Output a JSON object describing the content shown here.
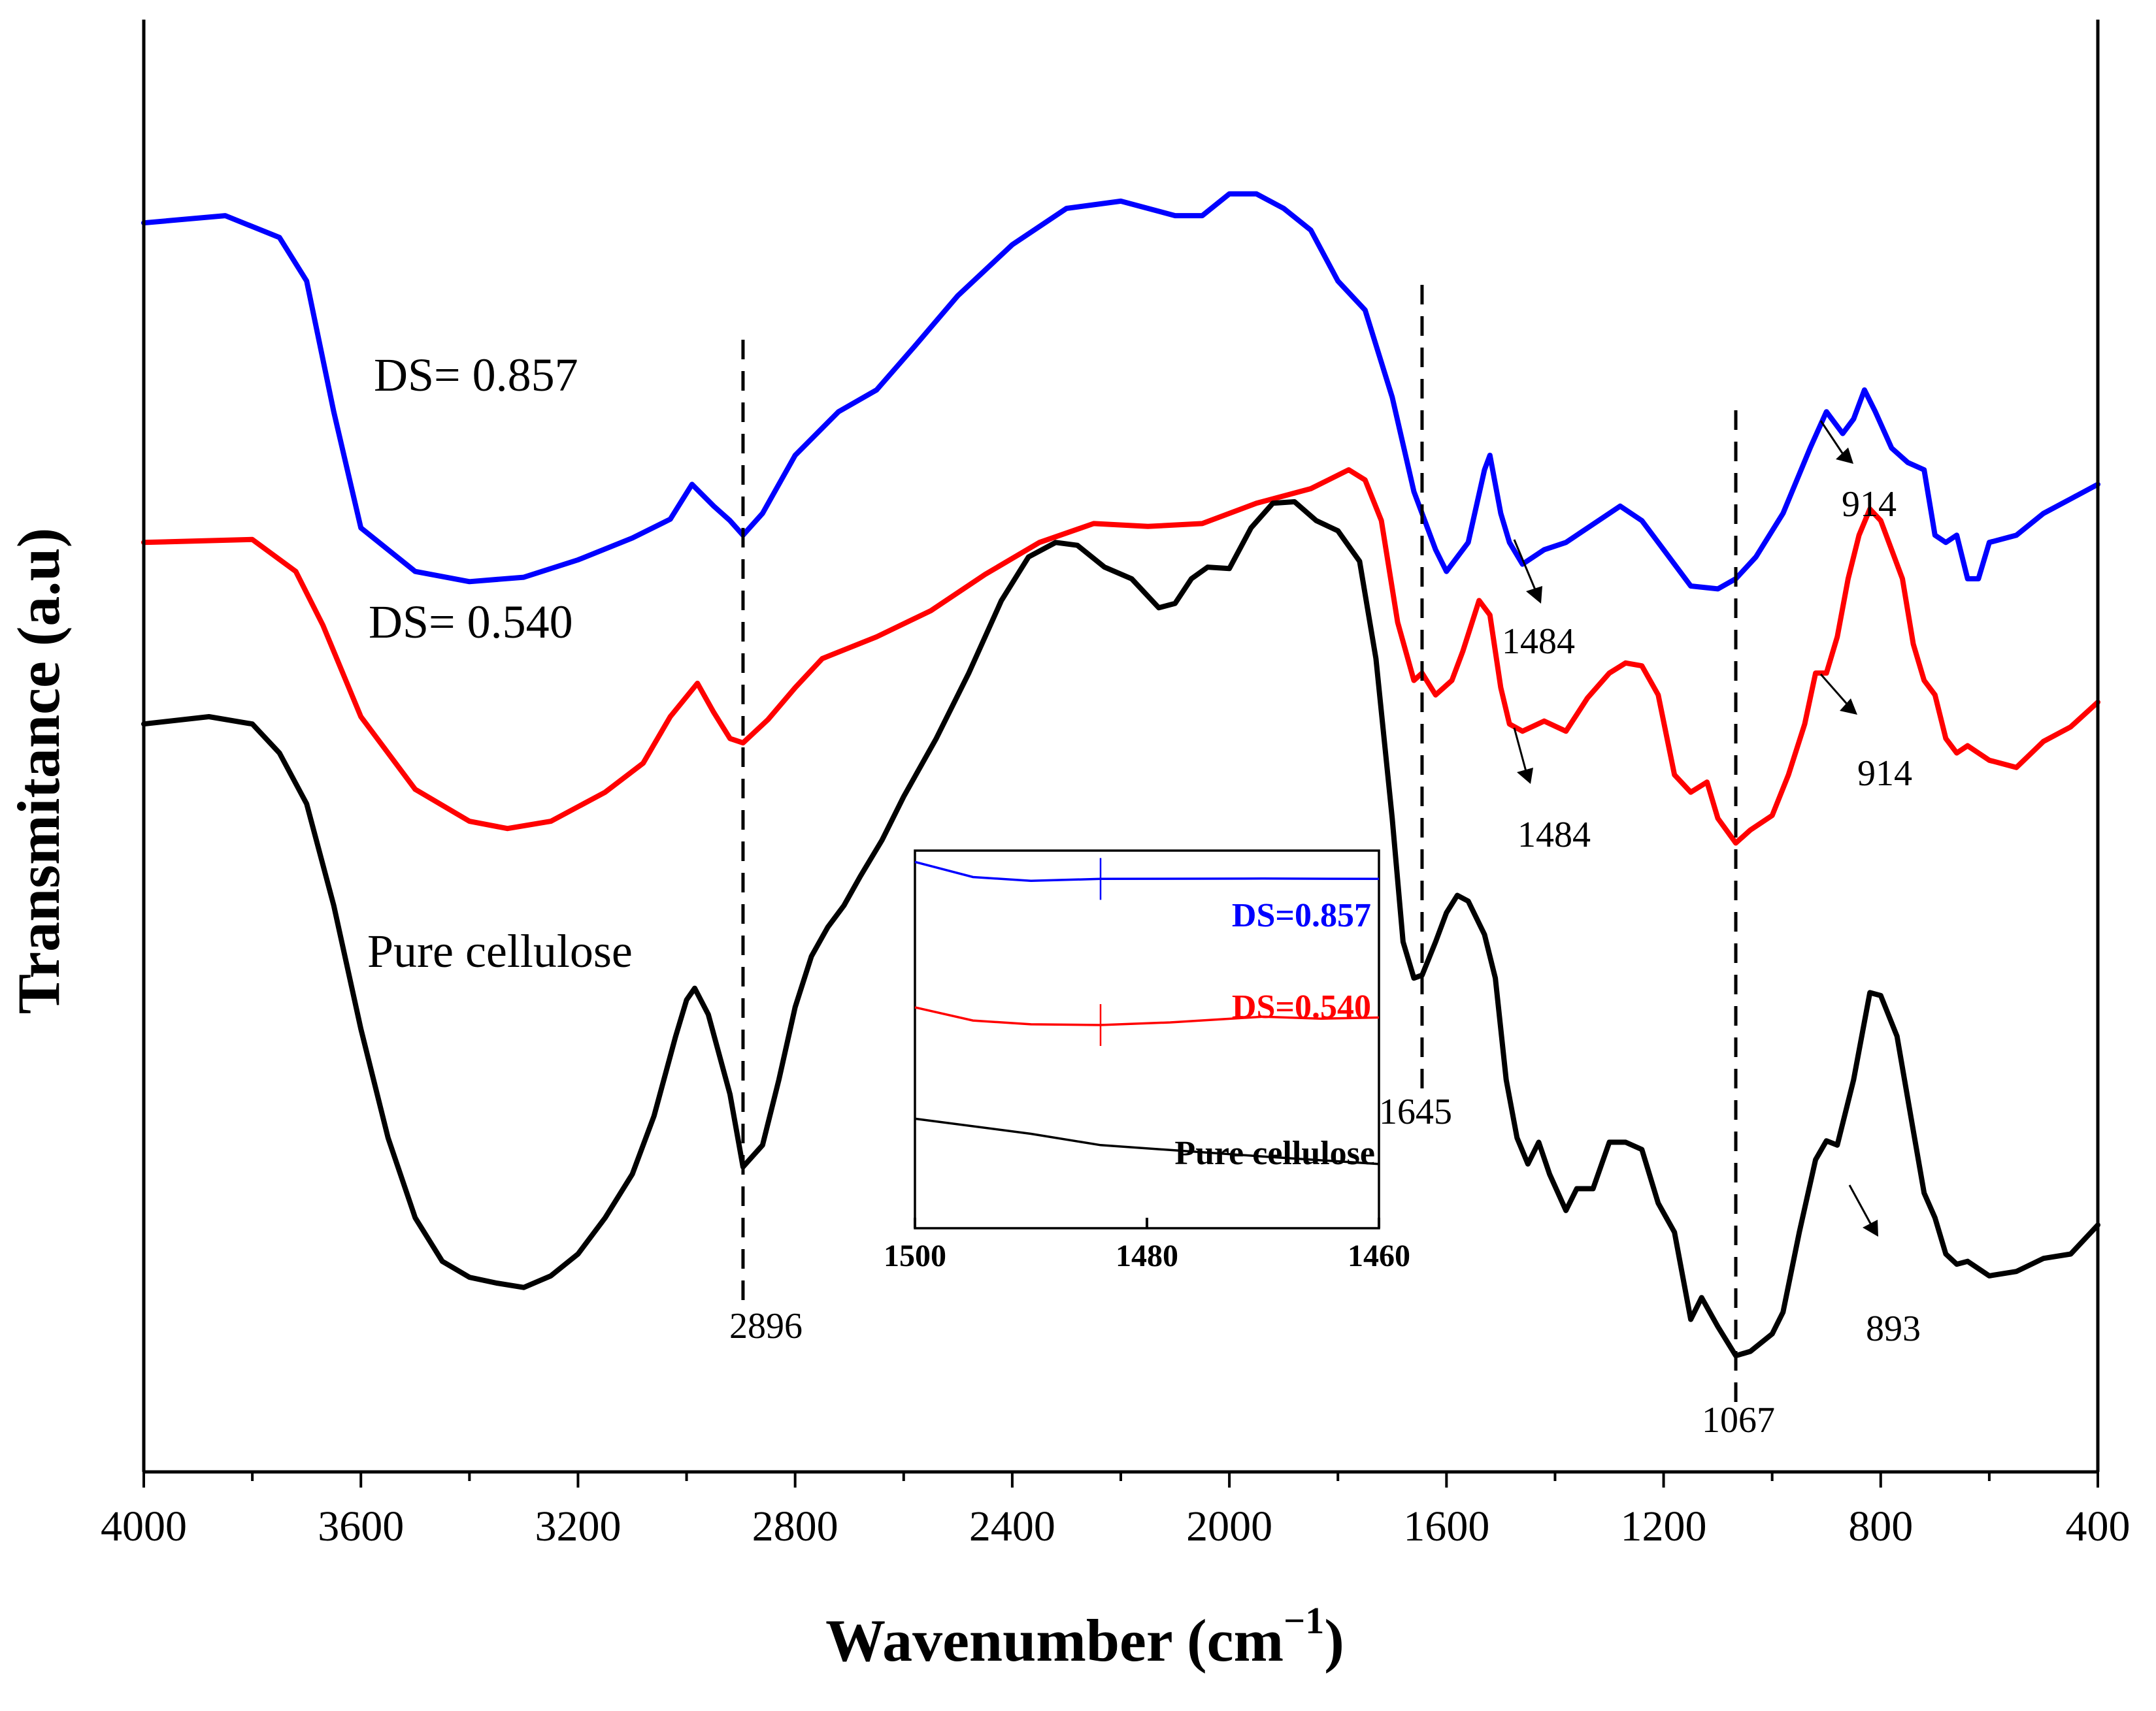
{
  "chart_data": {
    "type": "line",
    "title": "",
    "xlabel": "Wavenumber (cm",
    "xlabel_superscript": "−1",
    "xlabel_close": ")",
    "ylabel": "Transmitance (a.u)",
    "xlim": [
      4000,
      400
    ],
    "x_reversed": true,
    "ylim": [
      0,
      100
    ],
    "y_ticks_shown": false,
    "xticks": [
      "4000",
      "3600",
      "3200",
      "2800",
      "2400",
      "2000",
      "1600",
      "1200",
      "800",
      "400"
    ],
    "series": [
      {
        "name": "DS= 0.857",
        "color": "#0000ff",
        "points": [
          [
            4000,
            86
          ],
          [
            3850,
            86.5
          ],
          [
            3750,
            85
          ],
          [
            3700,
            82
          ],
          [
            3650,
            73
          ],
          [
            3600,
            65
          ],
          [
            3500,
            62
          ],
          [
            3400,
            61.3
          ],
          [
            3300,
            61.6
          ],
          [
            3200,
            62.8
          ],
          [
            3100,
            64.3
          ],
          [
            3030,
            65.6
          ],
          [
            2990,
            68
          ],
          [
            2950,
            66.5
          ],
          [
            2920,
            65.5
          ],
          [
            2896,
            64.5
          ],
          [
            2860,
            66
          ],
          [
            2800,
            70
          ],
          [
            2720,
            73
          ],
          [
            2650,
            74.5
          ],
          [
            2580,
            77.5
          ],
          [
            2500,
            81
          ],
          [
            2400,
            84.5
          ],
          [
            2300,
            87
          ],
          [
            2200,
            87.5
          ],
          [
            2100,
            86.5
          ],
          [
            2050,
            86.5
          ],
          [
            2000,
            88
          ],
          [
            1950,
            88
          ],
          [
            1900,
            87
          ],
          [
            1850,
            85.5
          ],
          [
            1800,
            82
          ],
          [
            1750,
            80
          ],
          [
            1700,
            74
          ],
          [
            1660,
            67.5
          ],
          [
            1620,
            63.5
          ],
          [
            1600,
            62
          ],
          [
            1560,
            64
          ],
          [
            1530,
            69
          ],
          [
            1520,
            70
          ],
          [
            1500,
            66
          ],
          [
            1484,
            64
          ],
          [
            1460,
            62.5
          ],
          [
            1420,
            63.5
          ],
          [
            1380,
            64
          ],
          [
            1320,
            65.5
          ],
          [
            1280,
            66.5
          ],
          [
            1240,
            65.5
          ],
          [
            1200,
            63.5
          ],
          [
            1150,
            61
          ],
          [
            1100,
            60.8
          ],
          [
            1067,
            61.5
          ],
          [
            1030,
            63
          ],
          [
            980,
            66
          ],
          [
            930,
            70.5
          ],
          [
            900,
            73
          ],
          [
            870,
            71.5
          ],
          [
            850,
            72.5
          ],
          [
            830,
            74.5
          ],
          [
            810,
            73
          ],
          [
            780,
            70.5
          ],
          [
            750,
            69.5
          ],
          [
            720,
            69
          ],
          [
            700,
            64.5
          ],
          [
            680,
            64
          ],
          [
            660,
            64.5
          ],
          [
            640,
            61.5
          ],
          [
            620,
            61.5
          ],
          [
            600,
            64
          ],
          [
            550,
            64.5
          ],
          [
            500,
            66
          ],
          [
            450,
            67
          ],
          [
            400,
            68
          ]
        ]
      },
      {
        "name": "DS= 0.540",
        "color": "#ff0000",
        "points": [
          [
            4000,
            64
          ],
          [
            3800,
            64.2
          ],
          [
            3720,
            62
          ],
          [
            3670,
            58.3
          ],
          [
            3600,
            52
          ],
          [
            3500,
            47
          ],
          [
            3400,
            44.8
          ],
          [
            3330,
            44.3
          ],
          [
            3250,
            44.8
          ],
          [
            3150,
            46.8
          ],
          [
            3080,
            48.8
          ],
          [
            3030,
            52
          ],
          [
            2980,
            54.3
          ],
          [
            2950,
            52.3
          ],
          [
            2920,
            50.5
          ],
          [
            2896,
            50.2
          ],
          [
            2850,
            51.8
          ],
          [
            2800,
            54
          ],
          [
            2750,
            56
          ],
          [
            2650,
            57.5
          ],
          [
            2550,
            59.3
          ],
          [
            2450,
            61.8
          ],
          [
            2350,
            64
          ],
          [
            2250,
            65.3
          ],
          [
            2150,
            65.1
          ],
          [
            2050,
            65.3
          ],
          [
            1950,
            66.7
          ],
          [
            1850,
            67.7
          ],
          [
            1780,
            69
          ],
          [
            1750,
            68.3
          ],
          [
            1720,
            65.5
          ],
          [
            1690,
            58.5
          ],
          [
            1660,
            54.5
          ],
          [
            1645,
            55
          ],
          [
            1620,
            53.5
          ],
          [
            1590,
            54.5
          ],
          [
            1570,
            56.5
          ],
          [
            1540,
            60
          ],
          [
            1520,
            59
          ],
          [
            1500,
            54
          ],
          [
            1484,
            51.5
          ],
          [
            1460,
            51
          ],
          [
            1420,
            51.7
          ],
          [
            1380,
            51
          ],
          [
            1340,
            53.3
          ],
          [
            1300,
            55
          ],
          [
            1270,
            55.7
          ],
          [
            1240,
            55.5
          ],
          [
            1210,
            53.5
          ],
          [
            1180,
            48
          ],
          [
            1150,
            46.8
          ],
          [
            1120,
            47.5
          ],
          [
            1100,
            45
          ],
          [
            1067,
            43.3
          ],
          [
            1040,
            44.2
          ],
          [
            1000,
            45.2
          ],
          [
            970,
            48
          ],
          [
            940,
            51.5
          ],
          [
            920,
            55
          ],
          [
            900,
            55
          ],
          [
            880,
            57.5
          ],
          [
            860,
            61.5
          ],
          [
            840,
            64.5
          ],
          [
            820,
            66.3
          ],
          [
            800,
            65.5
          ],
          [
            760,
            61.5
          ],
          [
            740,
            57
          ],
          [
            720,
            54.5
          ],
          [
            700,
            53.5
          ],
          [
            680,
            50.5
          ],
          [
            660,
            49.5
          ],
          [
            640,
            50
          ],
          [
            600,
            49
          ],
          [
            550,
            48.5
          ],
          [
            500,
            50.3
          ],
          [
            450,
            51.3
          ],
          [
            400,
            53
          ]
        ]
      },
      {
        "name": "Pure cellulose",
        "color": "#000000",
        "points": [
          [
            4000,
            51.5
          ],
          [
            3880,
            52
          ],
          [
            3800,
            51.5
          ],
          [
            3750,
            49.5
          ],
          [
            3700,
            46
          ],
          [
            3650,
            39
          ],
          [
            3600,
            30.5
          ],
          [
            3550,
            23
          ],
          [
            3500,
            17.5
          ],
          [
            3450,
            14.5
          ],
          [
            3400,
            13.4
          ],
          [
            3350,
            13
          ],
          [
            3300,
            12.7
          ],
          [
            3250,
            13.5
          ],
          [
            3200,
            15
          ],
          [
            3150,
            17.5
          ],
          [
            3100,
            20.5
          ],
          [
            3060,
            24.5
          ],
          [
            3020,
            30
          ],
          [
            3000,
            32.5
          ],
          [
            2985,
            33.3
          ],
          [
            2960,
            31.5
          ],
          [
            2920,
            26
          ],
          [
            2896,
            21
          ],
          [
            2860,
            22.5
          ],
          [
            2830,
            27
          ],
          [
            2800,
            32
          ],
          [
            2770,
            35.5
          ],
          [
            2740,
            37.5
          ],
          [
            2710,
            39
          ],
          [
            2680,
            41
          ],
          [
            2640,
            43.5
          ],
          [
            2600,
            46.5
          ],
          [
            2540,
            50.5
          ],
          [
            2480,
            55
          ],
          [
            2420,
            60
          ],
          [
            2370,
            63
          ],
          [
            2320,
            64
          ],
          [
            2280,
            63.8
          ],
          [
            2230,
            62.3
          ],
          [
            2180,
            61.5
          ],
          [
            2130,
            59.5
          ],
          [
            2100,
            59.8
          ],
          [
            2070,
            61.5
          ],
          [
            2040,
            62.3
          ],
          [
            2000,
            62.2
          ],
          [
            1960,
            65
          ],
          [
            1920,
            66.7
          ],
          [
            1880,
            66.8
          ],
          [
            1840,
            65.5
          ],
          [
            1800,
            64.8
          ],
          [
            1760,
            62.7
          ],
          [
            1730,
            56
          ],
          [
            1700,
            45
          ],
          [
            1680,
            36.5
          ],
          [
            1660,
            34
          ],
          [
            1645,
            34.2
          ],
          [
            1620,
            36.5
          ],
          [
            1600,
            38.5
          ],
          [
            1580,
            39.7
          ],
          [
            1560,
            39.3
          ],
          [
            1530,
            37
          ],
          [
            1510,
            34
          ],
          [
            1490,
            27
          ],
          [
            1470,
            23
          ],
          [
            1450,
            21.2
          ],
          [
            1430,
            22.7
          ],
          [
            1410,
            20.5
          ],
          [
            1380,
            18
          ],
          [
            1360,
            19.5
          ],
          [
            1330,
            19.5
          ],
          [
            1300,
            22.7
          ],
          [
            1270,
            22.7
          ],
          [
            1240,
            22.2
          ],
          [
            1210,
            18.5
          ],
          [
            1180,
            16.5
          ],
          [
            1150,
            10.5
          ],
          [
            1130,
            12
          ],
          [
            1100,
            10
          ],
          [
            1067,
            8
          ],
          [
            1040,
            8.3
          ],
          [
            1000,
            9.5
          ],
          [
            980,
            11
          ],
          [
            950,
            16.5
          ],
          [
            920,
            21.5
          ],
          [
            900,
            22.8
          ],
          [
            880,
            22.5
          ],
          [
            850,
            27
          ],
          [
            830,
            31
          ],
          [
            820,
            33
          ],
          [
            800,
            32.8
          ],
          [
            770,
            30
          ],
          [
            740,
            23.5
          ],
          [
            720,
            19.2
          ],
          [
            700,
            17.5
          ],
          [
            680,
            15
          ],
          [
            660,
            14.3
          ],
          [
            640,
            14.5
          ],
          [
            600,
            13.5
          ],
          [
            550,
            13.8
          ],
          [
            500,
            14.7
          ],
          [
            450,
            15
          ],
          [
            400,
            17
          ]
        ]
      }
    ],
    "annotations": {
      "series_labels": [
        "DS= 0.857",
        "DS= 0.540",
        "Pure cellulose"
      ],
      "markers": [
        {
          "x": 2896,
          "label": "2896"
        },
        {
          "x": 1645,
          "label": "1645"
        },
        {
          "x": 1067,
          "label": "1067"
        }
      ],
      "peak_labels": [
        {
          "x": 1484,
          "label": "1484",
          "series": "DS= 0.857"
        },
        {
          "x": 1484,
          "label": "1484",
          "series": "DS= 0.540"
        },
        {
          "x": 914,
          "label": "914",
          "series": "DS= 0.857"
        },
        {
          "x": 914,
          "label": "914",
          "series": "DS= 0.540"
        },
        {
          "x": 893,
          "label": "893",
          "series": "Pure cellulose"
        }
      ]
    },
    "inset": {
      "type": "line",
      "xlim": [
        1500,
        1460
      ],
      "x_reversed": true,
      "xticks": [
        "1500",
        "1480",
        "1460"
      ],
      "ylim": [
        0,
        100
      ],
      "marker_x": 1484,
      "series": [
        {
          "name": "DS=0.857",
          "color": "#0000ff",
          "points": [
            [
              1500,
              97
            ],
            [
              1495,
              93
            ],
            [
              1490,
              92
            ],
            [
              1484,
              92.5
            ],
            [
              1470,
              92.6
            ],
            [
              1460,
              92.5
            ]
          ]
        },
        {
          "name": "DS=0.540",
          "color": "#ff0000",
          "points": [
            [
              1500,
              58.5
            ],
            [
              1495,
              55
            ],
            [
              1490,
              54
            ],
            [
              1484,
              53.8
            ],
            [
              1478,
              54.5
            ],
            [
              1470,
              56
            ],
            [
              1465,
              55.5
            ],
            [
              1460,
              55.8
            ]
          ]
        },
        {
          "name": "Pure cellulose",
          "color": "#000000",
          "points": [
            [
              1500,
              29
            ],
            [
              1490,
              25
            ],
            [
              1484,
              22
            ],
            [
              1470,
              19
            ],
            [
              1460,
              17
            ]
          ]
        }
      ]
    }
  }
}
